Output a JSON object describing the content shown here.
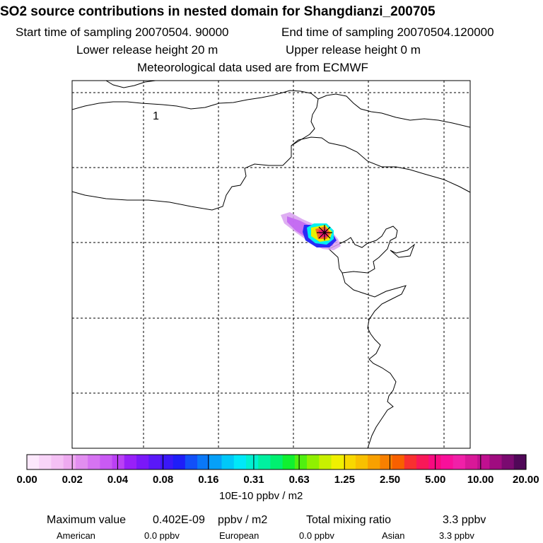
{
  "title": "SO2 source contributions in nested domain for Shangdianzi_200705",
  "start_label": "Start time of sampling 20070504. 90000",
  "end_label": "End time of sampling 20070504.120000",
  "lower_label": "Lower release height   20 m",
  "upper_label": "Upper release height    0 m",
  "met_label": "Meteorological data used are from ECMWF",
  "panel_number": "1",
  "chart_data": {
    "type": "heatmap",
    "title": "SO2 source contributions in nested domain for Shangdianzi_200705",
    "colorbar_ticks": [
      "0.00",
      "0.02",
      "0.04",
      "0.08",
      "0.16",
      "0.31",
      "0.63",
      "1.25",
      "2.50",
      "5.00",
      "10.00",
      "20.00"
    ],
    "colorbar_unit": "10E-10 ppbv / m2",
    "colors": [
      "#fce8fc",
      "#f8d4f8",
      "#f4c0f4",
      "#eeaaf0",
      "#e28ef0",
      "#d673f2",
      "#c95af4",
      "#ba40f5",
      "#9820f8",
      "#7a18f8",
      "#5a18f8",
      "#3a18f8",
      "#1e1ef8",
      "#1250f8",
      "#0a78f8",
      "#06a0f8",
      "#00c8f8",
      "#00e8f8",
      "#00f0d0",
      "#00f0a0",
      "#00f070",
      "#10f030",
      "#50f010",
      "#90f000",
      "#c8f000",
      "#f0f000",
      "#f8d800",
      "#f8c000",
      "#f8a000",
      "#f88000",
      "#f86000",
      "#f83030",
      "#f81858",
      "#f80a80",
      "#f8109a",
      "#f020a8",
      "#d81898",
      "#c01090",
      "#a00c80",
      "#7a0a70",
      "#500858"
    ],
    "maximum_value_label": "Maximum value",
    "maximum_value": "0.402E-09",
    "maximum_value_unit": "ppbv / m2",
    "total_mixing_ratio_label": "Total mixing ratio",
    "total_mixing_ratio": "3.3 ppbv",
    "contributions": [
      {
        "label": "American",
        "value": "0.0 ppbv"
      },
      {
        "label": "European",
        "value": "0.0 ppbv"
      },
      {
        "label": "Asian",
        "value": "3.3 ppbv"
      }
    ]
  }
}
